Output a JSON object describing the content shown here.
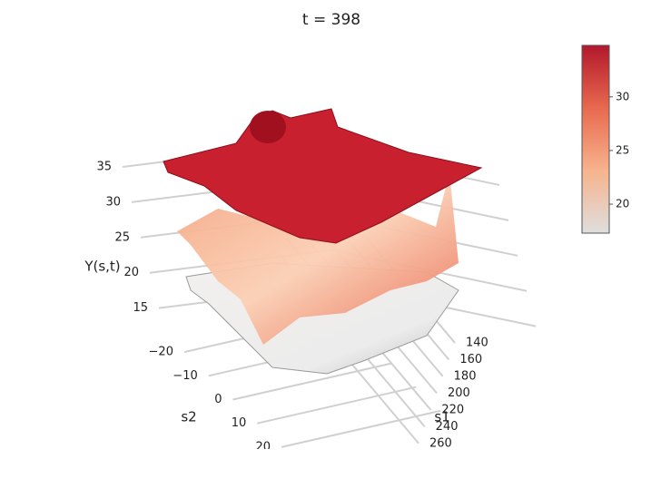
{
  "chart_data": {
    "type": "surface3d",
    "title": "t =  398",
    "zlabel": "Y(s,t)",
    "xlabel": "s1",
    "ylabel": "s2",
    "zlim": [
      12,
      38
    ],
    "zticks": [
      15,
      20,
      25,
      30,
      35
    ],
    "xlim": [
      130,
      270
    ],
    "xticks": [
      140,
      160,
      180,
      200,
      220,
      240,
      260
    ],
    "ylim": [
      -25,
      25
    ],
    "yticks": [
      {
        "value": -20,
        "label": "−20"
      },
      {
        "value": -10,
        "label": "−10"
      },
      0,
      10,
      20
    ],
    "colorbar": {
      "lim": [
        17.3,
        34.8
      ],
      "ticks": [
        20,
        25,
        30
      ],
      "colors": [
        "#dedede",
        "#f7b38d",
        "#e8694f",
        "#b2182b"
      ]
    }
  }
}
